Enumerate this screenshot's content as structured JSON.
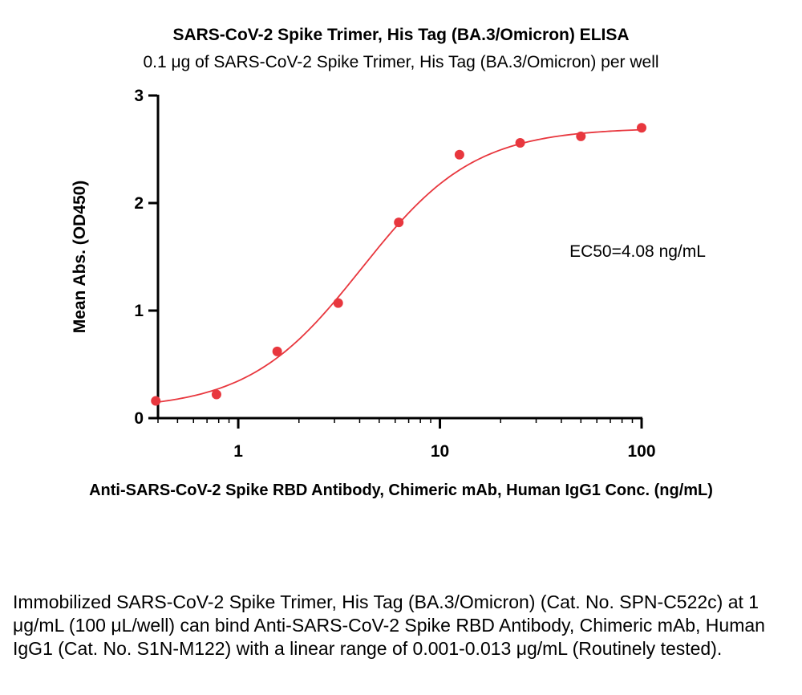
{
  "chart_data": {
    "type": "scatter",
    "title": "SARS-CoV-2 Spike Trimer, His Tag (BA.3/Omicron) ELISA",
    "subtitle": "0.1 μg of SARS-CoV-2 Spike Trimer, His Tag (BA.3/Omicron) per well",
    "xlabel": "Anti-SARS-CoV-2 Spike RBD Antibody, Chimeric mAb, Human IgG1 Conc. (ng/mL)",
    "ylabel": "Mean Abs. (OD450)",
    "x_scale": "log",
    "xlim": [
      0.4,
      100
    ],
    "ylim": [
      0,
      3
    ],
    "x_ticks": [
      1,
      10,
      100
    ],
    "x_tick_labels": [
      "1",
      "10",
      "100"
    ],
    "y_ticks": [
      0,
      1,
      2,
      3
    ],
    "y_tick_labels": [
      "0",
      "1",
      "2",
      "3"
    ],
    "grid": false,
    "series": [
      {
        "x": [
          0.39,
          0.78,
          1.56,
          3.13,
          6.25,
          12.5,
          25,
          50,
          100
        ],
        "y": [
          0.16,
          0.22,
          0.62,
          1.07,
          1.82,
          2.45,
          2.56,
          2.62,
          2.7
        ],
        "color": "#e8373e",
        "fit": "4PL",
        "fit_params": {
          "bottom": 0.08,
          "top": 2.7,
          "ec50": 4.08,
          "hill": 1.55
        }
      }
    ],
    "annotation": "EC50=4.08 ng/mL"
  },
  "caption": "Immobilized SARS-CoV-2 Spike Trimer, His Tag (BA.3/Omicron) (Cat. No. SPN-C522c) at 1 μg/mL (100 μL/well) can bind Anti-SARS-CoV-2 Spike RBD Antibody, Chimeric mAb, Human IgG1 (Cat. No. S1N-M122) with a linear range of 0.001-0.013 μg/mL (Routinely tested)."
}
